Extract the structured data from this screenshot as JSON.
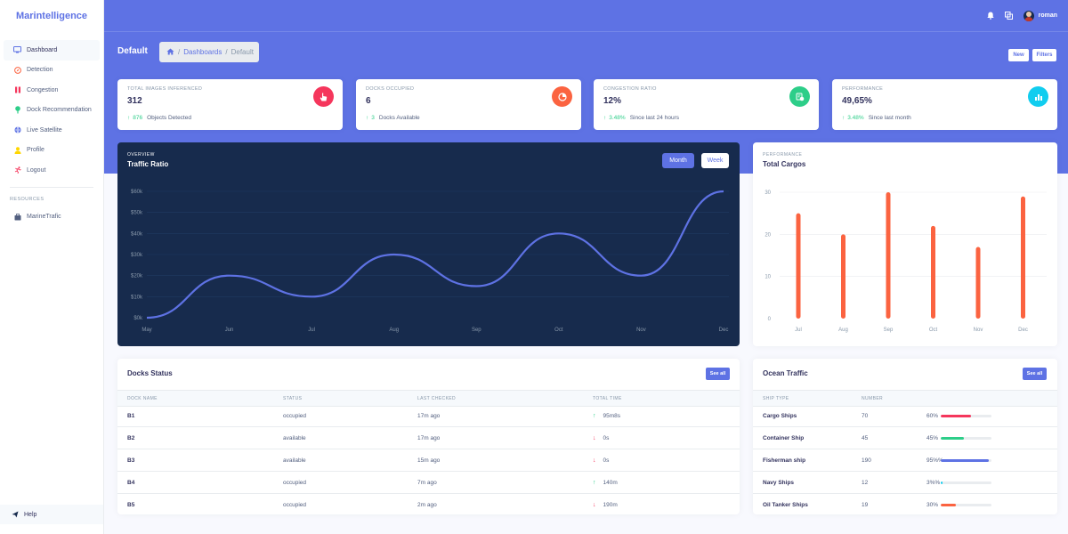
{
  "sidebar": {
    "brand": "Marintelligence",
    "items": [
      {
        "label": "Dashboard",
        "icon": "monitor-icon",
        "color": "#5e72e4"
      },
      {
        "label": "Detection",
        "icon": "compass-icon",
        "color": "#fb6340"
      },
      {
        "label": "Congestion",
        "icon": "pause-icon",
        "color": "#f5365c"
      },
      {
        "label": "Dock Recommendation",
        "icon": "pin-icon",
        "color": "#2dce89"
      },
      {
        "label": "Live Satellite",
        "icon": "globe-icon",
        "color": "#5e72e4"
      },
      {
        "label": "Profile",
        "icon": "user-icon",
        "color": "#ffd600"
      },
      {
        "label": "Logout",
        "icon": "run-icon",
        "color": "#f5365c"
      }
    ],
    "resources_heading": "RESOURCES",
    "resources": [
      {
        "label": "MarineTrafic",
        "icon": "briefcase-icon"
      }
    ],
    "help": "Help"
  },
  "topbar": {
    "username": "roman"
  },
  "header": {
    "title": "Default",
    "breadcrumb": [
      "Dashboards",
      "Default"
    ],
    "new_label": "New",
    "filters_label": "Filters"
  },
  "stats": [
    {
      "label": "TOTAL IMAGES INFERENCED",
      "value": "312",
      "change": "876",
      "desc": "Objects Detected",
      "color": "#f5365c"
    },
    {
      "label": "DOCKS OCCUPIED",
      "value": "6",
      "change": "3",
      "desc": "Docks Available",
      "color": "#fb6340"
    },
    {
      "label": "CONGESTION RATIO",
      "value": "12%",
      "change": "3.48%",
      "desc": "Since last 24 hours",
      "color": "#2dce89"
    },
    {
      "label": "PERFORMANCE",
      "value": "49,65%",
      "change": "3.48%",
      "desc": "Since last month",
      "color": "#11cdef"
    }
  ],
  "overview": {
    "kicker": "OVERVIEW",
    "title": "Traffic Ratio",
    "month_label": "Month",
    "week_label": "Week"
  },
  "performance": {
    "kicker": "PERFORMANCE",
    "title": "Total Cargos"
  },
  "chart_data": [
    {
      "type": "line",
      "categories": [
        "May",
        "Jun",
        "Jul",
        "Aug",
        "Sep",
        "Oct",
        "Nov",
        "Dec"
      ],
      "values": [
        0,
        20,
        10,
        30,
        15,
        40,
        20,
        60
      ],
      "y_ticks": [
        "$0k",
        "$10k",
        "$20k",
        "$30k",
        "$40k",
        "$50k",
        "$60k"
      ],
      "ylim": [
        0,
        60
      ],
      "color": "#5e72e4"
    },
    {
      "type": "bar",
      "categories": [
        "Jul",
        "Aug",
        "Sep",
        "Oct",
        "Nov",
        "Dec"
      ],
      "values": [
        25,
        20,
        30,
        22,
        17,
        29
      ],
      "y_ticks": [
        "0",
        "10",
        "20",
        "30"
      ],
      "ylim": [
        0,
        30
      ],
      "color": "#fb6340"
    }
  ],
  "docks": {
    "title": "Docks Status",
    "see_all": "See all",
    "columns": [
      "DOCK NAME",
      "STATUS",
      "LAST CHECKED",
      "TOTAL TIME"
    ],
    "rows": [
      {
        "name": "B1",
        "status": "occupied",
        "checked": "17m ago",
        "time": "95m8s",
        "dir": "up"
      },
      {
        "name": "B2",
        "status": "available",
        "checked": "17m ago",
        "time": "0s",
        "dir": "down"
      },
      {
        "name": "B3",
        "status": "available",
        "checked": "15m ago",
        "time": "0s",
        "dir": "down"
      },
      {
        "name": "B4",
        "status": "occupied",
        "checked": "7m ago",
        "time": "140m",
        "dir": "up"
      },
      {
        "name": "B5",
        "status": "occupied",
        "checked": "2m ago",
        "time": "190m",
        "dir": "down"
      }
    ]
  },
  "ocean": {
    "title": "Ocean Traffic",
    "see_all": "See all",
    "columns": [
      "SHIP TYPE",
      "NUMBER"
    ],
    "rows": [
      {
        "type": "Cargo Ships",
        "number": "70",
        "pct_label": "60%",
        "pct": 0.6,
        "color": "#f5365c"
      },
      {
        "type": "Container Ship",
        "number": "45",
        "pct_label": "45%",
        "pct": 0.45,
        "color": "#2dce89"
      },
      {
        "type": "Fisherman ship",
        "number": "190",
        "pct_label": "95%%",
        "pct": 0.95,
        "color": "#5e72e4"
      },
      {
        "type": "Navy Ships",
        "number": "12",
        "pct_label": "3%%",
        "pct": 0.03,
        "color": "#11cdef"
      },
      {
        "type": "Oil Tanker Ships",
        "number": "19",
        "pct_label": "30%",
        "pct": 0.3,
        "color": "#fb6340"
      }
    ]
  }
}
